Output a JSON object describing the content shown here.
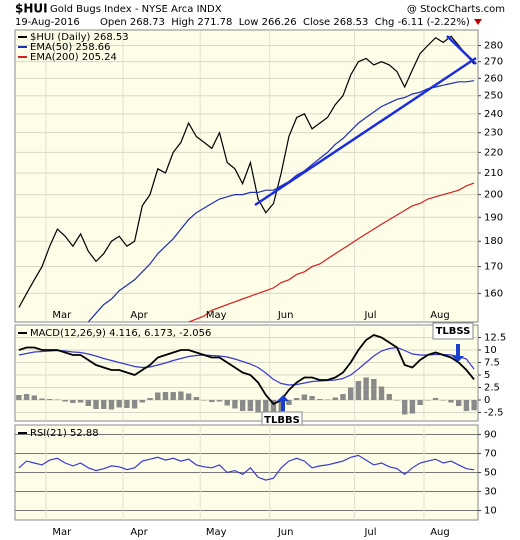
{
  "header": {
    "symbol": "$HUI",
    "title": "Gold Bugs Index - NYSE Arca INDX",
    "source": "@ StockCharts.com",
    "date": "19-Aug-2016",
    "quote": "Open 268.73  High 271.78  Low 266.26  Close 268.53  Chg -6.11 (-2.22%)"
  },
  "chart_data": [
    {
      "type": "line",
      "log": true,
      "grid": true,
      "categories": [
        null,
        null,
        null,
        null,
        "Mar",
        null,
        null,
        null,
        null,
        null,
        null,
        null,
        null,
        null,
        "Apr",
        null,
        null,
        null,
        null,
        null,
        null,
        null,
        null,
        null,
        "May",
        null,
        null,
        null,
        null,
        null,
        null,
        null,
        null,
        "Jun",
        null,
        null,
        null,
        null,
        null,
        null,
        null,
        null,
        null,
        null,
        "Jul",
        null,
        null,
        null,
        null,
        null,
        null,
        null,
        null,
        "Aug",
        null,
        null,
        null,
        null,
        null,
        null
      ],
      "ylim": [
        150,
        290
      ],
      "yticks": [
        160,
        170,
        180,
        190,
        200,
        210,
        220,
        230,
        240,
        250,
        260,
        270,
        280
      ],
      "series": [
        {
          "name": "$HUI (Daily) 268.53",
          "color": "#000000",
          "values": [
            155,
            160,
            165,
            170,
            178,
            185,
            182,
            178,
            183,
            176,
            172,
            175,
            180,
            182,
            178,
            180,
            195,
            200,
            212,
            210,
            220,
            225,
            235,
            228,
            225,
            222,
            230,
            215,
            212,
            205,
            215,
            198,
            192,
            196,
            210,
            228,
            238,
            240,
            232,
            235,
            238,
            245,
            250,
            262,
            270,
            272,
            268,
            270,
            268,
            264,
            255,
            265,
            275,
            280,
            285,
            282,
            286,
            280,
            274,
            268.53
          ]
        },
        {
          "name": "EMA(50) 258.66",
          "color": "#1f2fb0",
          "values": [
            null,
            null,
            null,
            null,
            null,
            null,
            null,
            null,
            null,
            150,
            153,
            156,
            158,
            161,
            163,
            165,
            168,
            171,
            175,
            178,
            181,
            185,
            189,
            192,
            194,
            196,
            198,
            199,
            200,
            200,
            201,
            201,
            202,
            202,
            204,
            206,
            209,
            211,
            214,
            217,
            220,
            224,
            227,
            231,
            235,
            238,
            241,
            244,
            246,
            248,
            249,
            251,
            252,
            254,
            255,
            256,
            257,
            258,
            258,
            258.66
          ]
        },
        {
          "name": "EMA(200) 205.24",
          "color": "#d42020",
          "values": [
            null,
            null,
            null,
            null,
            null,
            null,
            null,
            null,
            null,
            null,
            null,
            null,
            null,
            null,
            null,
            null,
            null,
            null,
            null,
            null,
            null,
            null,
            150,
            151,
            152,
            154,
            155,
            156,
            157,
            158,
            159,
            160,
            161,
            162,
            164,
            165,
            167,
            168,
            170,
            171,
            173,
            175,
            177,
            179,
            181,
            183,
            185,
            187,
            189,
            191,
            193,
            195,
            196,
            198,
            199,
            200,
            201,
            202,
            204,
            205.24
          ]
        }
      ]
    },
    {
      "type": "macd",
      "title": "MACD(12,26,9) 4.116, 6.173, -2.056",
      "grid": true,
      "ylim": [
        -4.2,
        15
      ],
      "yticks": [
        12.5,
        10,
        7.5,
        5,
        2.5,
        0,
        -2.5
      ],
      "annotations": [
        "TLBBS",
        "TLBSS"
      ],
      "series": [
        {
          "type": "bar",
          "color": "#8a8a8a",
          "values": [
            1,
            1.2,
            0.9,
            0.3,
            0.2,
            0.1,
            -0.3,
            -0.6,
            -0.5,
            -1.2,
            -1.8,
            -1.8,
            -1.9,
            -1.5,
            -1.6,
            -1.7,
            -0.5,
            0.4,
            1.5,
            1.6,
            1.6,
            1.7,
            1.3,
            0.6,
            0,
            -0.4,
            -0.3,
            -1.1,
            -1.7,
            -2.2,
            -2.2,
            -2.5,
            -3.2,
            -3.5,
            -3.3,
            -1,
            0.4,
            1.1,
            0.8,
            0.2,
            0.1,
            0.5,
            1.2,
            2.5,
            3.8,
            4.5,
            4.2,
            2.7,
            1.2,
            0,
            -2.9,
            -2.7,
            -1,
            0,
            0.4,
            -0.1,
            -0.5,
            -1.2,
            -2.2,
            -2.056
          ]
        },
        {
          "type": "line",
          "color": "#3a3ad0",
          "values": [
            9,
            9.3,
            9.6,
            9.7,
            9.8,
            9.9,
            9.8,
            9.6,
            9.5,
            9.2,
            8.8,
            8.3,
            7.9,
            7.5,
            7.1,
            6.7,
            6.5,
            6.6,
            7,
            7.4,
            7.9,
            8.3,
            8.7,
            8.9,
            9,
            8.9,
            8.8,
            8.6,
            8.2,
            7.7,
            7.2,
            6.5,
            5.4,
            4.1,
            3.3,
            3,
            3.1,
            3.4,
            3.7,
            3.8,
            3.9,
            4,
            4.3,
            5,
            6.2,
            7.5,
            8.8,
            9.8,
            10.3,
            10.5,
            9.9,
            9.2,
            9,
            9,
            9.1,
            9.1,
            9,
            8.7,
            8.2,
            6.173
          ]
        },
        {
          "type": "line",
          "color": "#000000",
          "values": [
            10,
            10.5,
            10.5,
            10,
            10,
            10,
            9.5,
            9,
            9,
            8,
            7,
            6.5,
            6,
            6,
            5.5,
            5,
            6,
            7,
            8.5,
            9,
            9.5,
            10,
            10,
            9.5,
            9,
            8.5,
            8.5,
            7.5,
            6.5,
            5.5,
            5,
            3.5,
            1,
            -0.8,
            0,
            2,
            3.5,
            4.5,
            4.5,
            4,
            4,
            4.5,
            5.5,
            7.5,
            10,
            12,
            13,
            12.5,
            11.5,
            10.5,
            7,
            6.5,
            8,
            9,
            9.5,
            9,
            8.5,
            7.5,
            6,
            4.116
          ]
        }
      ]
    },
    {
      "type": "rsi",
      "title": "RSI(21) 52.88",
      "grid": true,
      "categories": [
        null,
        null,
        null,
        null,
        "Mar",
        null,
        null,
        null,
        null,
        null,
        null,
        null,
        null,
        null,
        "Apr",
        null,
        null,
        null,
        null,
        null,
        null,
        null,
        null,
        null,
        "May",
        null,
        null,
        null,
        null,
        null,
        null,
        null,
        null,
        "Jun",
        null,
        null,
        null,
        null,
        null,
        null,
        null,
        null,
        null,
        null,
        "Jul",
        null,
        null,
        null,
        null,
        null,
        null,
        null,
        null,
        "Aug",
        null,
        null,
        null,
        null,
        null,
        null
      ],
      "ylim": [
        0,
        100
      ],
      "yticks": [
        90,
        70,
        50,
        30,
        10
      ],
      "series": [
        {
          "type": "line",
          "color": "#3a3ad0",
          "values": [
            55,
            62,
            60,
            58,
            63,
            65,
            60,
            57,
            60,
            55,
            52,
            54,
            57,
            56,
            53,
            55,
            62,
            64,
            66,
            63,
            65,
            62,
            64,
            58,
            56,
            55,
            58,
            50,
            52,
            48,
            55,
            45,
            42,
            44,
            55,
            62,
            65,
            62,
            55,
            57,
            58,
            60,
            62,
            66,
            68,
            63,
            58,
            60,
            56,
            54,
            48,
            55,
            60,
            62,
            64,
            60,
            62,
            58,
            54,
            52.88
          ]
        }
      ]
    }
  ]
}
